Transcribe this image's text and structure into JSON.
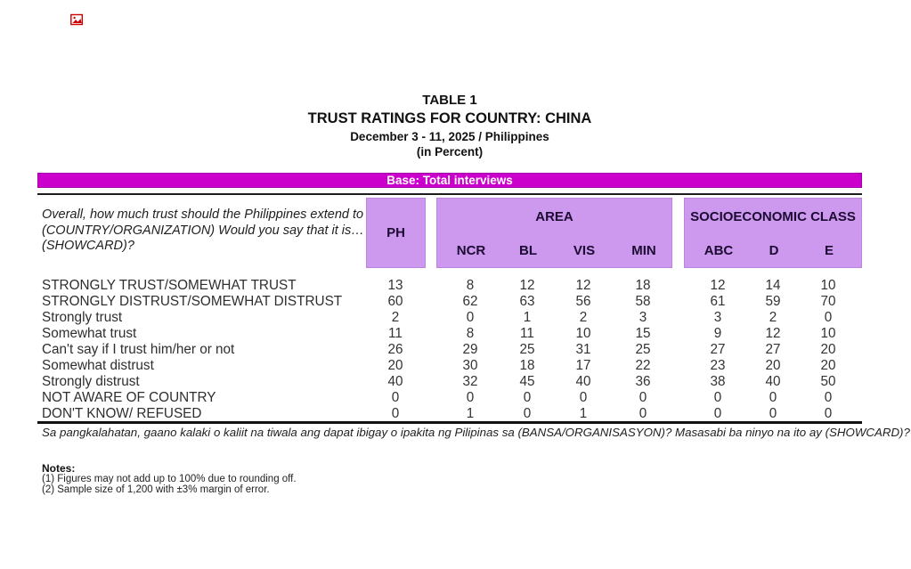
{
  "title": {
    "table_no": "TABLE 1",
    "main": "TRUST RATINGS FOR COUNTRY: CHINA",
    "date_line": "December 3 - 11, 2025 / Philippines",
    "unit_line": "(in Percent)"
  },
  "base_bar": {
    "label": "Base: Total interviews",
    "bg": "#CC00CC",
    "text_color": "#FFFFFF"
  },
  "question": {
    "lines": [
      "Overall, how much trust should the Philippines extend to",
      "(COUNTRY/ORGANIZATION) Would you say that it is…",
      "(SHOWCARD)?"
    ]
  },
  "header": {
    "ph_label": "PH",
    "area_label": "AREA",
    "area_columns": [
      "NCR",
      "BL",
      "VIS",
      "MIN"
    ],
    "sec_label": "SOCIOECONOMIC CLASS",
    "sec_columns": [
      "ABC",
      "D",
      "E"
    ],
    "cell_bg": "#CC99EE"
  },
  "table": {
    "columns": [
      "PH",
      "NCR",
      "BL",
      "VIS",
      "MIN",
      "ABC",
      "D",
      "E"
    ],
    "rows": [
      {
        "label": "STRONGLY TRUST/SOMEWHAT TRUST",
        "values": [
          13,
          8,
          12,
          12,
          18,
          12,
          14,
          10
        ]
      },
      {
        "label": "STRONGLY DISTRUST/SOMEWHAT DISTRUST",
        "values": [
          60,
          62,
          63,
          56,
          58,
          61,
          59,
          70
        ]
      },
      {
        "label": "Strongly trust",
        "values": [
          2,
          0,
          1,
          2,
          3,
          3,
          2,
          0
        ]
      },
      {
        "label": "Somewhat trust",
        "values": [
          11,
          8,
          11,
          10,
          15,
          9,
          12,
          10
        ]
      },
      {
        "label": "Can't say if I trust him/her or not",
        "values": [
          26,
          29,
          25,
          31,
          25,
          27,
          27,
          20
        ]
      },
      {
        "label": "Somewhat distrust",
        "values": [
          20,
          30,
          18,
          17,
          22,
          23,
          20,
          20
        ]
      },
      {
        "label": "Strongly distrust",
        "values": [
          40,
          32,
          45,
          40,
          36,
          38,
          40,
          50
        ]
      },
      {
        "label": "NOT AWARE OF COUNTRY",
        "values": [
          0,
          0,
          0,
          0,
          0,
          0,
          0,
          0
        ]
      },
      {
        "label": "DON'T KNOW/ REFUSED",
        "values": [
          0,
          1,
          0,
          1,
          0,
          0,
          0,
          0
        ]
      }
    ]
  },
  "footnote_tagalog": "Sa pangkalahatan, gaano kalaki o kaliit na tiwala ang dapat ibigay o ipakita ng Pilipinas sa (BANSA/ORGANISASYON)? Masasabi ba ninyo na ito ay (SHOWCARD)?",
  "notes": {
    "heading": "Notes:",
    "items": [
      "(1) Figures may not add up to 100% due to rounding off.",
      "(2) Sample size of 1,200 with ±3% margin of error."
    ]
  }
}
